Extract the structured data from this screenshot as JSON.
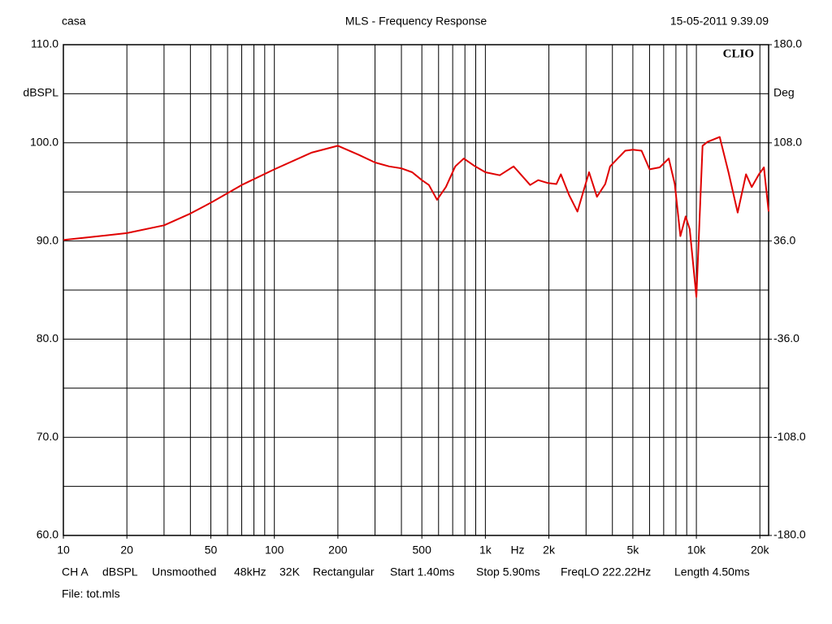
{
  "header": {
    "left": "casa",
    "title": "MLS - Frequency Response",
    "date": "15-05-2011 9.39.09"
  },
  "chart_data": {
    "type": "line",
    "logo": "CLIO",
    "x": [
      10,
      20,
      30,
      40,
      50,
      70,
      100,
      150,
      200,
      250,
      300,
      350,
      400,
      450,
      500,
      540,
      590,
      650,
      720,
      790,
      880,
      1000,
      1170,
      1360,
      1630,
      1780,
      1980,
      2170,
      2280,
      2490,
      2730,
      3100,
      3380,
      3700,
      3900,
      4600,
      5000,
      5500,
      6000,
      6700,
      7400,
      7900,
      8400,
      8900,
      9300,
      10000,
      10700,
      11300,
      12900,
      14200,
      15700,
      17200,
      18300,
      19800,
      20900,
      22000
    ],
    "values": [
      90.1,
      90.8,
      91.6,
      92.8,
      93.9,
      95.7,
      97.3,
      99.0,
      99.7,
      98.8,
      98.0,
      97.6,
      97.4,
      97.0,
      96.2,
      95.7,
      94.2,
      95.5,
      97.6,
      98.4,
      97.7,
      97.0,
      96.7,
      97.6,
      95.7,
      96.2,
      95.9,
      95.8,
      96.8,
      94.7,
      93.0,
      97.0,
      94.5,
      95.8,
      97.6,
      99.2,
      99.3,
      99.2,
      97.3,
      97.5,
      98.4,
      95.8,
      90.5,
      92.5,
      91.2,
      84.3,
      99.7,
      100.1,
      100.6,
      97.0,
      92.9,
      96.8,
      95.5,
      96.8,
      97.5,
      93.0
    ],
    "color": "#e00000",
    "xlim": [
      10,
      22000
    ],
    "log_x": true,
    "xticks": [
      10,
      20,
      50,
      100,
      200,
      500,
      {
        "value": 1000,
        "label": "1k"
      },
      {
        "value": 2000,
        "label": "2k"
      },
      {
        "value": 5000,
        "label": "5k"
      },
      {
        "value": 10000,
        "label": "10k"
      },
      {
        "value": 20000,
        "label": "20k"
      }
    ],
    "xgrid": [
      20,
      30,
      40,
      50,
      60,
      70,
      80,
      90,
      100,
      200,
      300,
      400,
      500,
      600,
      700,
      800,
      900,
      1000,
      2000,
      3000,
      4000,
      5000,
      6000,
      7000,
      8000,
      9000,
      10000,
      20000
    ],
    "xlabel": "Hz",
    "ylim": [
      60,
      110
    ],
    "yticks": [
      {
        "value": 110,
        "label": "110.0"
      },
      {
        "value": 100,
        "label": "100.0"
      },
      {
        "value": 90,
        "label": "90.0"
      },
      {
        "value": 80,
        "label": "80.0"
      },
      {
        "value": 70,
        "label": "70.0"
      },
      {
        "value": 60,
        "label": "60.0"
      }
    ],
    "yminor": [
      105,
      95,
      85,
      75,
      65
    ],
    "ylabel": "dBSPL",
    "y2lim": [
      -180,
      180
    ],
    "y2ticks": [
      {
        "value": 180,
        "label": "180.0"
      },
      {
        "value": 108,
        "label": "108.0"
      },
      {
        "value": 36,
        "label": "36.0"
      },
      {
        "value": -36,
        "label": "-36.0"
      },
      {
        "value": -108,
        "label": "-108.0"
      },
      {
        "value": -180,
        "label": "-180.0"
      }
    ],
    "y2label": "Deg",
    "grid": true
  },
  "footer": {
    "items": [
      "CH A",
      "dBSPL",
      "Unsmoothed",
      "48kHz",
      "32K",
      "Rectangular",
      "Start 1.40ms",
      "Stop 5.90ms",
      "FreqLO 222.22Hz",
      "Length 4.50ms"
    ],
    "file": "File: tot.mls"
  }
}
